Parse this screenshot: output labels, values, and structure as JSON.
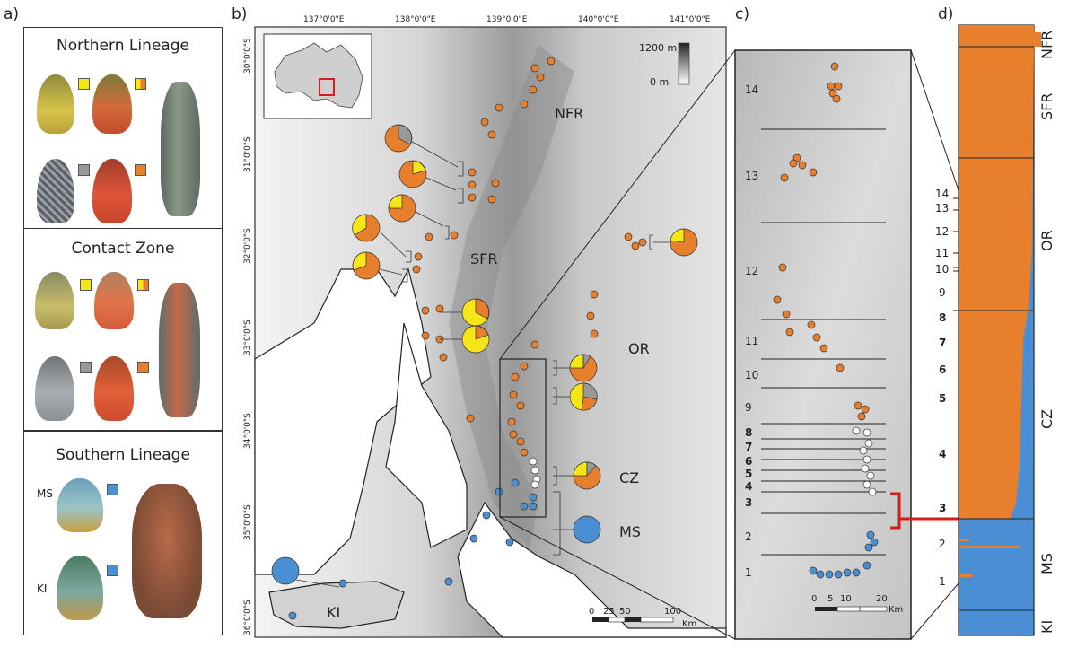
{
  "panels": {
    "a": "a)",
    "b": "b)",
    "c": "c)",
    "d": "d)"
  },
  "panel_a": {
    "northern": {
      "title": "Northern Lineage"
    },
    "contact": {
      "title": "Contact Zone"
    },
    "southern": {
      "title": "Southern Lineage",
      "pop_ms": "MS",
      "pop_ki": "KI"
    }
  },
  "colors": {
    "orange": "#E87F2C",
    "blue": "#4A8FD3",
    "yellow": "#F7E617",
    "grey": "#999999",
    "white": "#FFFFFF"
  },
  "map": {
    "lon_labels": [
      "137°0'0\"E",
      "138°0'0\"E",
      "139°0'0\"E",
      "140°0'0\"E",
      "141°0'0\"E"
    ],
    "lat_labels": [
      "30°0'0\"S",
      "31°0'0\"S",
      "32°0'0\"S",
      "33°0'0\"S",
      "34°0'0\"S",
      "35°0'0\"S",
      "36°0'0\"S"
    ],
    "legend_top": "1200 m",
    "legend_bottom": "0 m",
    "regions": [
      "NFR",
      "SFR",
      "OR",
      "CZ",
      "MS",
      "KI"
    ],
    "scale_labels": [
      "0",
      "25",
      "50",
      "100"
    ],
    "scale_unit": "Km"
  },
  "zoom": {
    "transect_labels": [
      "14",
      "13",
      "12",
      "11",
      "10",
      "9",
      "8",
      "7",
      "6",
      "5",
      "4",
      "3",
      "2",
      "1"
    ],
    "scale_labels": [
      "0",
      "5",
      "10",
      "20"
    ],
    "scale_unit": "Km"
  },
  "structure": {
    "transect_labels": [
      "14",
      "13",
      "12",
      "11",
      "10",
      "9",
      "8",
      "7",
      "6",
      "5",
      "4",
      "3",
      "2",
      "1"
    ],
    "regions": [
      "NFR",
      "SFR",
      "OR",
      "CZ",
      "MS",
      "KI"
    ]
  }
}
